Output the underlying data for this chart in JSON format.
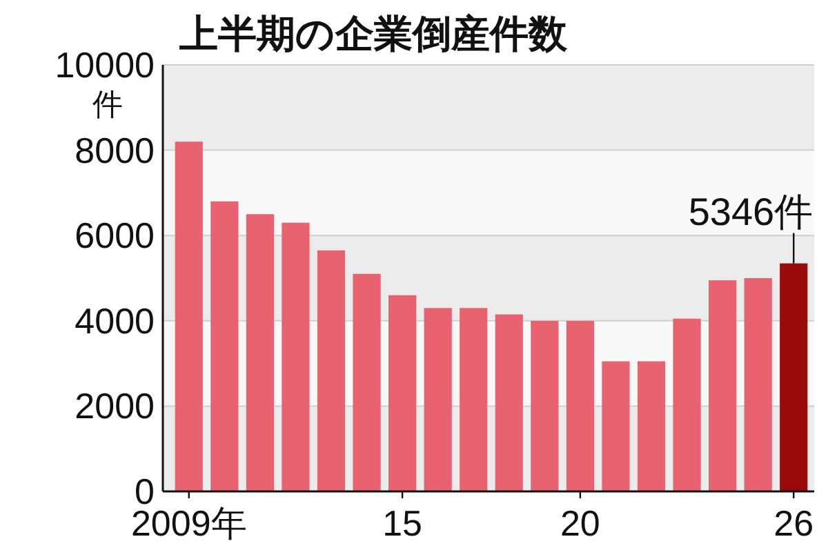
{
  "chart_data": {
    "type": "bar",
    "title": "上半期の企業倒産件数",
    "ylabel": "件",
    "categories": [
      "2009年",
      null,
      null,
      null,
      null,
      null,
      "15",
      null,
      null,
      null,
      null,
      "20",
      null,
      null,
      null,
      null,
      null,
      "26"
    ],
    "values": [
      8200,
      6800,
      6500,
      6300,
      5650,
      5100,
      4600,
      4300,
      4300,
      4150,
      4000,
      4000,
      3050,
      3050,
      4050,
      4950,
      5000,
      5346
    ],
    "colors": [
      "#e8636f",
      "#e8636f",
      "#e8636f",
      "#e8636f",
      "#e8636f",
      "#e8636f",
      "#e8636f",
      "#e8636f",
      "#e8636f",
      "#e8636f",
      "#e8636f",
      "#e8636f",
      "#e8636f",
      "#e8636f",
      "#e8636f",
      "#e8636f",
      "#e8636f",
      "#9b0a0a"
    ],
    "value_labels": [
      null,
      null,
      null,
      null,
      null,
      null,
      null,
      null,
      null,
      null,
      null,
      null,
      null,
      null,
      null,
      null,
      null,
      "5346件"
    ],
    "ylim": [
      0,
      10000
    ],
    "yticks": [
      0,
      2000,
      4000,
      6000,
      8000,
      10000
    ],
    "grid": "y"
  }
}
